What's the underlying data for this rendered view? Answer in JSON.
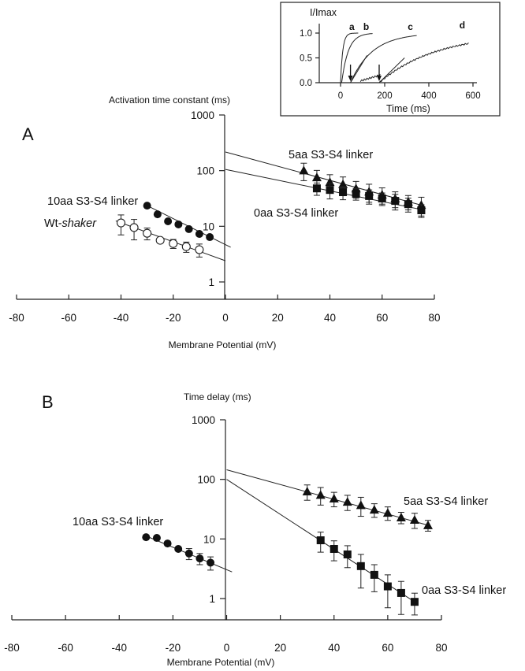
{
  "chart_data": [
    {
      "panel": "A",
      "type": "scatter",
      "panel_label": "A",
      "title": "",
      "ylabel": "Activation time constant (ms)",
      "xlabel": "Membrane Potential (mV)",
      "xlim": [
        -80,
        80
      ],
      "ylim": [
        1,
        1000
      ],
      "yscale": "log",
      "xticks": [
        -80,
        -60,
        -40,
        -20,
        0,
        20,
        40,
        60,
        80
      ],
      "xtick_labels": [
        "-80",
        "-60",
        "-40",
        "-20",
        "0",
        "20",
        "40",
        "60",
        "80"
      ],
      "yticks": [
        1,
        10,
        100,
        1000
      ],
      "ytick_labels": [
        "1",
        "10",
        "100",
        "1000"
      ],
      "grid": false,
      "series": [
        {
          "name": "Wt-shaker",
          "label_prefix": "Wt-",
          "label_italic": "shaker",
          "marker": "open-circle",
          "x": [
            -40,
            -35,
            -30,
            -25,
            -20,
            -15,
            -10
          ],
          "y": [
            11.5,
            9.5,
            7.5,
            5.6,
            4.9,
            4.3,
            3.8
          ],
          "err": [
            4.5,
            3.8,
            1.8,
            0.6,
            0.9,
            0.9,
            1.0
          ],
          "fit": {
            "x": [
              -42,
              0
            ],
            "y": [
              12.5,
              2.4
            ]
          }
        },
        {
          "name": "10aa S3-S4 linker",
          "marker": "filled-circle",
          "x": [
            -30,
            -26,
            -22,
            -18,
            -14,
            -10,
            -6
          ],
          "y": [
            23.5,
            16.4,
            12.3,
            10.8,
            8.9,
            7.3,
            6.4
          ],
          "err": [
            0,
            0,
            0,
            0,
            0,
            0,
            0
          ],
          "fit": {
            "x": [
              -30,
              2
            ],
            "y": [
              23.5,
              4.2
            ]
          }
        },
        {
          "name": "5aa S3-S4 linker",
          "marker": "filled-triangle",
          "x": [
            30,
            35,
            40,
            45,
            50,
            55,
            60,
            65,
            70,
            75
          ],
          "y": [
            101,
            76,
            62.5,
            57,
            48,
            42,
            37,
            31.6,
            27.7,
            24.3
          ],
          "err": [
            35,
            25,
            22,
            20,
            16,
            15,
            12,
            10,
            8,
            9
          ],
          "fit": {
            "x": [
              0,
              75
            ],
            "y": [
              216,
              24
            ]
          }
        },
        {
          "name": "0aa S3-S4 linker",
          "marker": "filled-square",
          "x": [
            35,
            40,
            45,
            50,
            55,
            60,
            65,
            70,
            75
          ],
          "y": [
            48,
            45,
            41,
            38.5,
            35,
            31.6,
            28.6,
            25,
            19.4
          ],
          "err": [
            12,
            14,
            11,
            9,
            10,
            8,
            9,
            7,
            5
          ],
          "fit": {
            "x": [
              0,
              75
            ],
            "y": [
              105,
              20
            ]
          }
        }
      ],
      "inset": {
        "ylabel": "I/Imax",
        "xlabel": "Time  (ms)",
        "xlim": [
          -100,
          600
        ],
        "ylim": [
          0,
          1.1
        ],
        "xticks": [
          0,
          200,
          400,
          600
        ],
        "xtick_labels": [
          "0",
          "200",
          "400",
          "600"
        ],
        "yticks": [
          0.0,
          0.5,
          1.0
        ],
        "ytick_labels": [
          "0.0",
          "0.5",
          "1.0"
        ],
        "curves": [
          {
            "label": "a",
            "tau": 10,
            "delay": 0,
            "end": 80
          },
          {
            "label": "b",
            "tau": 30,
            "delay": 5,
            "end": 145
          },
          {
            "label": "c",
            "tau": 100,
            "delay": 45,
            "end": 345
          },
          {
            "label": "d",
            "tau": 260,
            "delay": 175,
            "end": 580
          }
        ],
        "arrows_at_ms": [
          45,
          175
        ]
      }
    },
    {
      "panel": "B",
      "type": "scatter",
      "panel_label": "B",
      "title": "",
      "ylabel": "Time delay (ms)",
      "xlabel": "Membrane Potential (mV)",
      "xlim": [
        -80,
        80
      ],
      "ylim": [
        1,
        1000
      ],
      "yscale": "log",
      "xticks": [
        -80,
        -60,
        -40,
        -20,
        0,
        20,
        40,
        60,
        80
      ],
      "xtick_labels": [
        "-80",
        "-60",
        "-40",
        "-20",
        "0",
        "20",
        "40",
        "60",
        "80"
      ],
      "yticks": [
        1,
        10,
        100,
        1000
      ],
      "ytick_labels": [
        "1",
        "10",
        "100",
        "1000"
      ],
      "grid": false,
      "series": [
        {
          "name": "10aa S3-S4 linker",
          "marker": "filled-circle",
          "x": [
            -30,
            -26,
            -22,
            -18,
            -14,
            -10,
            -6
          ],
          "y": [
            10.7,
            10.4,
            8.4,
            6.8,
            5.7,
            4.7,
            4.0
          ],
          "err": [
            0,
            0,
            0,
            0,
            1.2,
            1.0,
            1.0
          ],
          "fit": {
            "x": [
              -30,
              2
            ],
            "y": [
              11.2,
              2.8
            ]
          }
        },
        {
          "name": "5aa S3-S4 linker",
          "marker": "filled-triangle",
          "x": [
            30,
            35,
            40,
            45,
            50,
            55,
            60,
            65,
            70,
            75
          ],
          "y": [
            62.6,
            55,
            47.6,
            42,
            37,
            31,
            27.5,
            23,
            21,
            17
          ],
          "err": [
            18,
            18,
            13,
            12,
            13,
            8,
            7,
            5,
            6,
            3.5
          ],
          "fit": {
            "x": [
              0,
              75
            ],
            "y": [
              145,
              17
            ]
          }
        },
        {
          "name": "0aa S3-S4 linker",
          "marker": "filled-square",
          "x": [
            35,
            40,
            45,
            50,
            55,
            60,
            65,
            70
          ],
          "y": [
            9.5,
            6.8,
            5.5,
            3.5,
            2.5,
            1.6,
            1.24,
            0.88
          ],
          "err": [
            3.5,
            2.5,
            2.2,
            2.0,
            1.2,
            0.9,
            0.7,
            0.35
          ],
          "fit": {
            "x": [
              0,
              70
            ],
            "y": [
              100,
              0.88
            ]
          }
        }
      ]
    }
  ]
}
